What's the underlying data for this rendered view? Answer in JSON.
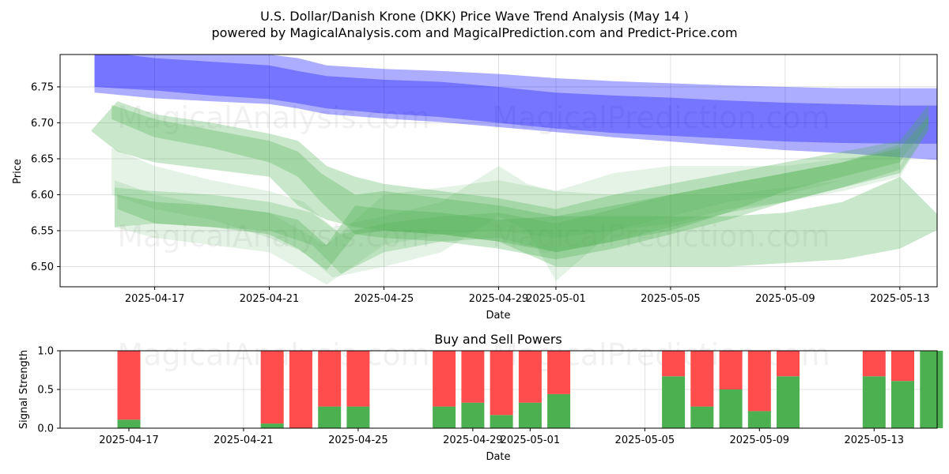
{
  "chart_data": [
    {
      "type": "area",
      "title": "U.S. Dollar/Danish Krone (DKK) Price Wave Trend Analysis (May 14 )",
      "subtitle": "powered by MagicalAnalysis.com and MagicalPrediction.com and Predict-Price.com",
      "xlabel": "Date",
      "ylabel": "Price",
      "xlim": [
        -3.3,
        27.3
      ],
      "ylim": [
        6.472,
        6.795
      ],
      "x_ticks": [
        {
          "day": 0,
          "label": "2025-04-17"
        },
        {
          "day": 4,
          "label": "2025-04-21"
        },
        {
          "day": 8,
          "label": "2025-04-25"
        },
        {
          "day": 12,
          "label": "2025-04-29"
        },
        {
          "day": 14,
          "label": "2025-05-01"
        },
        {
          "day": 18,
          "label": "2025-05-05"
        },
        {
          "day": 22,
          "label": "2025-05-09"
        },
        {
          "day": 26,
          "label": "2025-05-13"
        }
      ],
      "y_ticks": [
        {
          "value": 6.5,
          "label": "6.50"
        },
        {
          "value": 6.55,
          "label": "6.55"
        },
        {
          "value": 6.6,
          "label": "6.60"
        },
        {
          "value": 6.65,
          "label": "6.65"
        },
        {
          "value": 6.7,
          "label": "6.70"
        },
        {
          "value": 6.75,
          "label": "6.75"
        }
      ],
      "series": [
        {
          "name": "blue band outer",
          "color": "#0000ff",
          "opacity": 0.32,
          "x": [
            -2.1,
            0,
            2,
            4,
            5,
            6,
            8,
            10,
            12,
            14,
            16,
            18,
            20,
            22,
            24,
            26,
            27.4
          ],
          "upper": [
            6.81,
            6.803,
            6.8,
            6.795,
            6.79,
            6.78,
            6.775,
            6.772,
            6.768,
            6.762,
            6.758,
            6.755,
            6.752,
            6.75,
            6.748,
            6.748,
            6.748
          ],
          "lower": [
            6.742,
            6.734,
            6.73,
            6.726,
            6.72,
            6.712,
            6.706,
            6.701,
            6.694,
            6.687,
            6.68,
            6.674,
            6.668,
            6.662,
            6.658,
            6.652,
            6.648
          ]
        },
        {
          "name": "blue band inner",
          "color": "#0000ff",
          "opacity": 0.32,
          "x": [
            -2.1,
            0,
            2,
            4,
            5,
            6,
            8,
            10,
            12,
            14,
            16,
            18,
            20,
            22,
            24,
            26,
            27.4
          ],
          "upper": [
            6.8,
            6.79,
            6.785,
            6.78,
            6.772,
            6.765,
            6.76,
            6.757,
            6.75,
            6.742,
            6.738,
            6.735,
            6.731,
            6.728,
            6.726,
            6.724,
            6.724
          ],
          "lower": [
            6.75,
            6.745,
            6.738,
            6.733,
            6.727,
            6.72,
            6.713,
            6.708,
            6.7,
            6.692,
            6.686,
            6.682,
            6.678,
            6.674,
            6.672,
            6.671,
            6.671
          ]
        },
        {
          "name": "green wave 1",
          "color": "#4caf50",
          "opacity": 0.3,
          "x": [
            -2.2,
            -1.3,
            0,
            2,
            4,
            5,
            6,
            7,
            8,
            10,
            12,
            14,
            16,
            18,
            20,
            22,
            24,
            26,
            27
          ],
          "upper": [
            6.69,
            6.73,
            6.712,
            6.7,
            6.685,
            6.675,
            6.64,
            6.625,
            6.615,
            6.605,
            6.595,
            6.58,
            6.6,
            6.615,
            6.63,
            6.645,
            6.66,
            6.675,
            6.725
          ],
          "lower": [
            6.688,
            6.66,
            6.645,
            6.635,
            6.625,
            6.585,
            6.565,
            6.555,
            6.55,
            6.545,
            6.535,
            6.52,
            6.535,
            6.55,
            6.575,
            6.605,
            6.625,
            6.645,
            6.7
          ]
        },
        {
          "name": "green wave 2",
          "color": "#4caf50",
          "opacity": 0.3,
          "x": [
            -1.5,
            0,
            2,
            4,
            5,
            5.8,
            7,
            8,
            10,
            12,
            14,
            16,
            18,
            20,
            22,
            24,
            26,
            27
          ],
          "upper": [
            6.725,
            6.705,
            6.69,
            6.675,
            6.66,
            6.63,
            6.6,
            6.605,
            6.595,
            6.585,
            6.57,
            6.585,
            6.6,
            6.615,
            6.63,
            6.645,
            6.665,
            6.71
          ],
          "lower": [
            6.705,
            6.68,
            6.665,
            6.645,
            6.625,
            6.59,
            6.545,
            6.54,
            6.535,
            6.525,
            6.51,
            6.525,
            6.545,
            6.565,
            6.59,
            6.61,
            6.63,
            6.69
          ]
        },
        {
          "name": "green wave 3",
          "color": "#4caf50",
          "opacity": 0.3,
          "x": [
            -1.3,
            0,
            2,
            4,
            5,
            6,
            7,
            8,
            10,
            12,
            14,
            16,
            18,
            20,
            22,
            24,
            26,
            27.5
          ],
          "upper": [
            6.6,
            6.59,
            6.585,
            6.575,
            6.565,
            6.53,
            6.585,
            6.58,
            6.575,
            6.565,
            6.57,
            6.57,
            6.57,
            6.57,
            6.575,
            6.59,
            6.625,
            6.565
          ],
          "lower": [
            6.58,
            6.56,
            6.555,
            6.545,
            6.525,
            6.495,
            6.545,
            6.55,
            6.545,
            6.535,
            6.5,
            6.5,
            6.5,
            6.5,
            6.505,
            6.51,
            6.525,
            6.555
          ]
        },
        {
          "name": "green wave 4",
          "color": "#4caf50",
          "opacity": 0.25,
          "x": [
            -1.4,
            0,
            2,
            4,
            5.5,
            6.5,
            8,
            10,
            12,
            14,
            16,
            18,
            20,
            22,
            24,
            26
          ],
          "upper": [
            6.61,
            6.605,
            6.6,
            6.59,
            6.575,
            6.545,
            6.56,
            6.57,
            6.575,
            6.56,
            6.58,
            6.6,
            6.615,
            6.63,
            6.645,
            6.67
          ],
          "lower": [
            6.555,
            6.56,
            6.555,
            6.55,
            6.53,
            6.49,
            6.52,
            6.535,
            6.54,
            6.52,
            6.535,
            6.555,
            6.575,
            6.59,
            6.61,
            6.635
          ]
        },
        {
          "name": "green wave 5",
          "color": "#4caf50",
          "opacity": 0.15,
          "x": [
            -1.5,
            0,
            2,
            4,
            5.2,
            6.2,
            8,
            10,
            12,
            13,
            14,
            16,
            18,
            20,
            22,
            24,
            26
          ],
          "upper": [
            6.665,
            6.64,
            6.62,
            6.605,
            6.59,
            6.555,
            6.57,
            6.59,
            6.64,
            6.615,
            6.605,
            6.63,
            6.64,
            6.64,
            6.64,
            6.65,
            6.66
          ],
          "lower": [
            6.6,
            6.58,
            6.565,
            6.54,
            6.52,
            6.485,
            6.5,
            6.52,
            6.57,
            6.55,
            6.48,
            6.55,
            6.57,
            6.59,
            6.6,
            6.62,
            6.64
          ]
        },
        {
          "name": "green wave 6",
          "color": "#4caf50",
          "opacity": 0.15,
          "x": [
            -1.4,
            0,
            2,
            4,
            6,
            8,
            10,
            12,
            14,
            16,
            18,
            20,
            22,
            24,
            26,
            27
          ],
          "upper": [
            6.62,
            6.6,
            6.585,
            6.575,
            6.53,
            6.6,
            6.61,
            6.62,
            6.605,
            6.6,
            6.6,
            6.6,
            6.61,
            6.62,
            6.64,
            6.71
          ],
          "lower": [
            6.555,
            6.54,
            6.53,
            6.52,
            6.475,
            6.53,
            6.545,
            6.55,
            6.54,
            6.55,
            6.56,
            6.58,
            6.59,
            6.605,
            6.625,
            6.69
          ]
        }
      ],
      "watermarks": [
        "MagicalAnalysis.com",
        "MagicalPrediction.com",
        "MagicalAnalysis.com",
        "MagicalPrediction.com"
      ]
    },
    {
      "type": "bar",
      "title": "Buy and Sell Powers",
      "xlabel": "Date",
      "ylabel": "Signal Strength",
      "xlim": [
        -2.4,
        28.2
      ],
      "ylim": [
        0,
        1.0
      ],
      "y_ticks": [
        {
          "value": 0,
          "label": "0.0"
        },
        {
          "value": 0.5,
          "label": "0.5"
        },
        {
          "value": 1.0,
          "label": "1.0"
        }
      ],
      "x_ticks": [
        {
          "day": 0,
          "label": "2025-04-17"
        },
        {
          "day": 4,
          "label": "2025-04-21"
        },
        {
          "day": 8,
          "label": "2025-04-25"
        },
        {
          "day": 12,
          "label": "2025-04-29"
        },
        {
          "day": 14,
          "label": "2025-05-01"
        },
        {
          "day": 18,
          "label": "2025-05-05"
        },
        {
          "day": 22,
          "label": "2025-05-09"
        },
        {
          "day": 26,
          "label": "2025-05-13"
        }
      ],
      "buy_color": "#4caf50",
      "sell_color": "#ff4c4c",
      "bars": [
        {
          "day": 0,
          "buy": 0.11,
          "sell": 0.89
        },
        {
          "day": 5,
          "buy": 0.06,
          "sell": 0.94
        },
        {
          "day": 6,
          "buy": 0.0,
          "sell": 1.0
        },
        {
          "day": 7,
          "buy": 0.28,
          "sell": 0.72
        },
        {
          "day": 8,
          "buy": 0.28,
          "sell": 0.72
        },
        {
          "day": 11,
          "buy": 0.28,
          "sell": 0.72
        },
        {
          "day": 12,
          "buy": 0.33,
          "sell": 0.67
        },
        {
          "day": 13,
          "buy": 0.17,
          "sell": 0.83
        },
        {
          "day": 14,
          "buy": 0.33,
          "sell": 0.67
        },
        {
          "day": 15,
          "buy": 0.44,
          "sell": 0.56
        },
        {
          "day": 19,
          "buy": 0.67,
          "sell": 0.33
        },
        {
          "day": 20,
          "buy": 0.28,
          "sell": 0.72
        },
        {
          "day": 21,
          "buy": 0.5,
          "sell": 0.5
        },
        {
          "day": 22,
          "buy": 0.22,
          "sell": 0.78
        },
        {
          "day": 23,
          "buy": 0.67,
          "sell": 0.33
        },
        {
          "day": 26,
          "buy": 0.67,
          "sell": 0.33
        },
        {
          "day": 27,
          "buy": 0.61,
          "sell": 0.39
        },
        {
          "day": 28,
          "buy": 1.0,
          "sell": 0.0
        }
      ],
      "watermarks": [
        "MagicalAnalysis.com",
        "MagicalPrediction.com"
      ]
    }
  ]
}
